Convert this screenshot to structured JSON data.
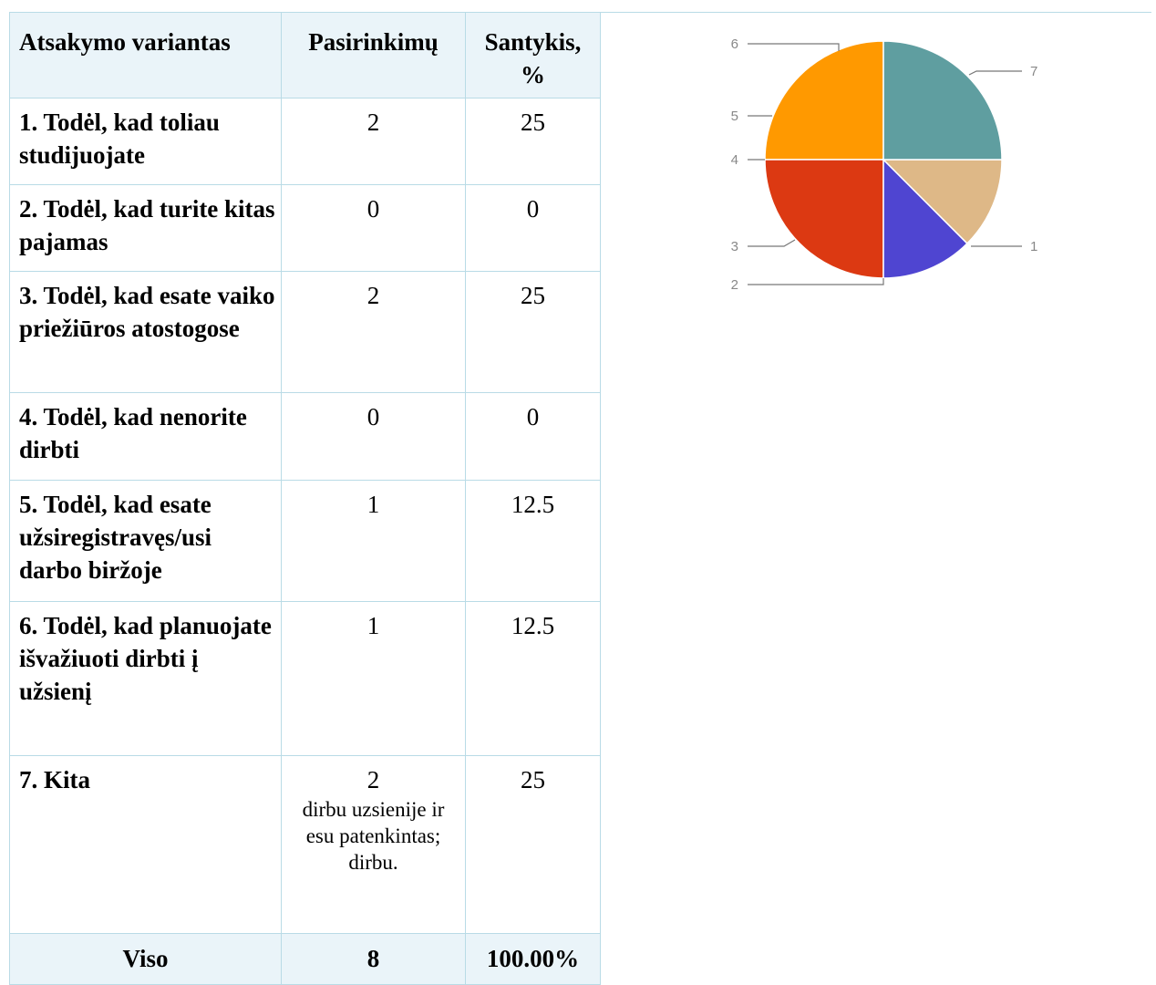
{
  "table": {
    "headers": [
      "Atsakymo variantas",
      "Pasirinkimų",
      "Santykis, %"
    ],
    "rows": [
      {
        "option": "1. Todėl, kad toliau studijuojate",
        "count": "2",
        "note": "",
        "percent": "25"
      },
      {
        "option": "2. Todėl, kad turite kitas pajamas",
        "count": "0",
        "note": "",
        "percent": "0"
      },
      {
        "option": "3. Todėl, kad esate vaiko priežiūros atostogose",
        "count": "2",
        "note": "",
        "percent": "25"
      },
      {
        "option": "4. Todėl, kad nenorite dirbti",
        "count": "0",
        "note": "",
        "percent": "0"
      },
      {
        "option": "5. Todėl, kad esate užsiregistravęs/usi darbo biržoje",
        "count": "1",
        "note": "",
        "percent": "12.5"
      },
      {
        "option": "6. Todėl, kad planuojate išvažiuoti dirbti į užsienį",
        "count": "1",
        "note": "",
        "percent": "12.5"
      },
      {
        "option": "7. Kita",
        "count": "2",
        "note": "dirbu uzsienije ir esu patenkintas; dirbu.",
        "percent": "25"
      }
    ],
    "total": {
      "label": "Viso",
      "count": "8",
      "percent": "100.00%"
    }
  },
  "chart_data": {
    "type": "pie",
    "categories": [
      "1",
      "2",
      "3",
      "4",
      "5",
      "6",
      "7"
    ],
    "values": [
      25,
      0,
      25,
      0,
      12.5,
      12.5,
      25
    ],
    "colors": [
      "#ff9900",
      "#dc3912",
      "#dc3912",
      "#4f45d1",
      "#4f45d1",
      "#deb887",
      "#5f9ea0"
    ],
    "slice_colors": {
      "1": "#ff9900",
      "3": "#dc3912",
      "5": "#4f45d1",
      "6": "#deb887",
      "7": "#5f9ea0"
    },
    "legend": "labeled leader lines"
  },
  "colors": {
    "border": "#b9dbe6",
    "header_bg": "#eaf4f9"
  }
}
